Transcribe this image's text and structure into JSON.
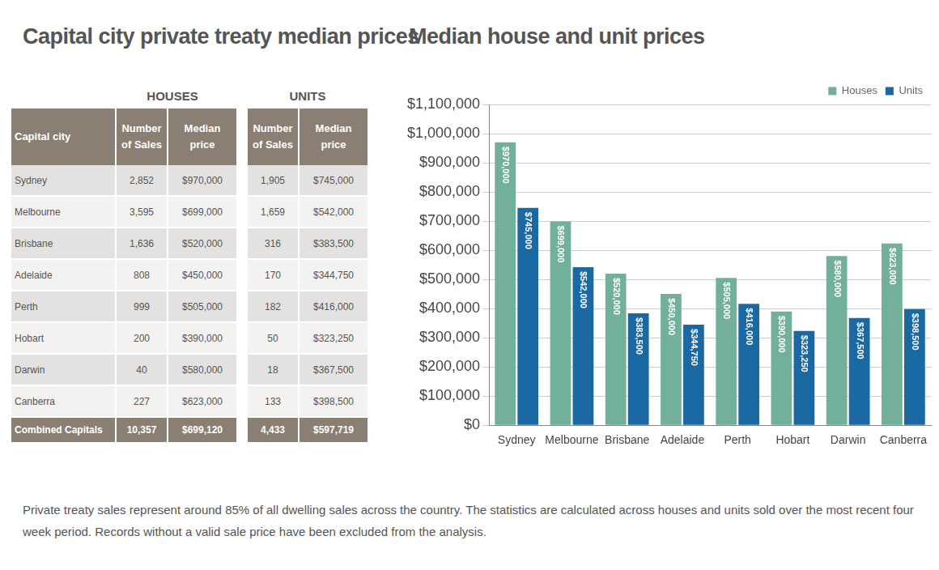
{
  "chart_data": {
    "type": "bar",
    "title": "Median house and unit prices",
    "categories": [
      "Sydney",
      "Melbourne",
      "Brisbane",
      "Adelaide",
      "Perth",
      "Hobart",
      "Darwin",
      "Canberra"
    ],
    "series": [
      {
        "name": "Houses",
        "color": "#72b09a",
        "values": [
          970000,
          699000,
          520000,
          450000,
          505000,
          390000,
          580000,
          623000
        ],
        "value_labels": [
          "$970,000",
          "$699,000",
          "$520,000",
          "$450,000",
          "$505,000",
          "$390,000",
          "$580,000",
          "$623,000"
        ]
      },
      {
        "name": "Units",
        "color": "#1b69a3",
        "values": [
          745000,
          542000,
          383500,
          344750,
          416000,
          323250,
          367500,
          398500
        ],
        "value_labels": [
          "$745,000",
          "$542,000",
          "$383,500",
          "$344,750",
          "$416,000",
          "$323,250",
          "$367,500",
          "$398,500"
        ]
      }
    ],
    "ylim": [
      0,
      1100000
    ],
    "yticks": [
      {
        "value": 0,
        "label": "$0"
      },
      {
        "value": 100000,
        "label": "$100,000"
      },
      {
        "value": 200000,
        "label": "$200,000"
      },
      {
        "value": 300000,
        "label": "$300,000"
      },
      {
        "value": 400000,
        "label": "$400,000"
      },
      {
        "value": 500000,
        "label": "$500,000"
      },
      {
        "value": 600000,
        "label": "$600,000"
      },
      {
        "value": 700000,
        "label": "$700,000"
      },
      {
        "value": 800000,
        "label": "$800,000"
      },
      {
        "value": 900000,
        "label": "$900,000"
      },
      {
        "value": 1000000,
        "label": "$1,000,000"
      },
      {
        "value": 1100000,
        "label": "$1,100,000"
      }
    ],
    "grid": true,
    "legend": "top-right",
    "data_labels": true
  },
  "table": {
    "title": "Capital city private treaty median prices",
    "groups": [
      "HOUSES",
      "UNITS"
    ],
    "columns": [
      "Capital city",
      "Number of Sales",
      "Median price",
      "Number of Sales",
      "Median price"
    ],
    "rows": [
      [
        "Sydney",
        "2,852",
        "$970,000",
        "1,905",
        "$745,000"
      ],
      [
        "Melbourne",
        "3,595",
        "$699,000",
        "1,659",
        "$542,000"
      ],
      [
        "Brisbane",
        "1,636",
        "$520,000",
        "316",
        "$383,500"
      ],
      [
        "Adelaide",
        "808",
        "$450,000",
        "170",
        "$344,750"
      ],
      [
        "Perth",
        "999",
        "$505,000",
        "182",
        "$416,000"
      ],
      [
        "Hobart",
        "200",
        "$390,000",
        "50",
        "$323,250"
      ],
      [
        "Darwin",
        "40",
        "$580,000",
        "18",
        "$367,500"
      ],
      [
        "Canberra",
        "227",
        "$623,000",
        "133",
        "$398,500"
      ],
      [
        "Combined Capitals",
        "10,357",
        "$699,120",
        "4,433",
        "$597,719"
      ]
    ]
  },
  "footnote": "Private treaty sales represent around 85% of all dwelling sales across the country.  The statistics are calculated across houses and units sold over the most recent four week period. Records without a valid sale price have been excluded from the analysis."
}
